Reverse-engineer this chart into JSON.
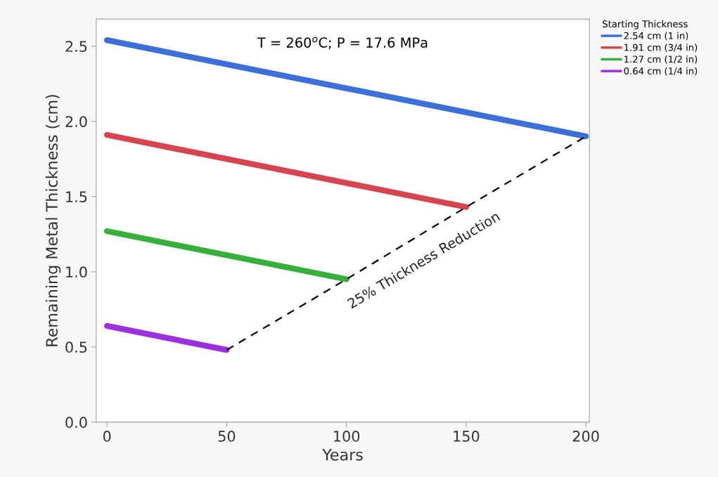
{
  "chart_data": {
    "type": "line",
    "xlabel": "Years",
    "ylabel": "Remaining Metal Thickness (cm)",
    "legend_title": "Starting Thickness",
    "legend": "right",
    "grid": false,
    "marker": "none",
    "line_style": "solid",
    "xlim": [
      -4.5,
      201.5
    ],
    "xticks": [
      0,
      50,
      100,
      150,
      200
    ],
    "ylim": [
      0,
      2.68
    ],
    "yticks": [
      {
        "value": 0,
        "label": "0.0"
      },
      0.5,
      {
        "value": 1,
        "label": "1.0"
      },
      1.5,
      {
        "value": 2,
        "label": "2.0"
      },
      2.5
    ],
    "series": [
      {
        "name": "2.54 cm (1 in)",
        "color": "#3d6fd9",
        "x": [
          0,
          200
        ],
        "values": [
          2.54,
          1.9
        ]
      },
      {
        "name": "1.91 cm (3/4 in)",
        "color": "#d6444f",
        "x": [
          0,
          150
        ],
        "values": [
          1.91,
          1.43
        ]
      },
      {
        "name": "1.27 cm (1/2 in)",
        "color": "#36b03b",
        "x": [
          0,
          100
        ],
        "values": [
          1.27,
          0.95
        ]
      },
      {
        "name": "0.64 cm (1/4 in)",
        "color": "#9b30e0",
        "x": [
          0,
          50
        ],
        "values": [
          0.64,
          0.48
        ]
      },
      {
        "color": "#000000",
        "line_style": "dashed",
        "x": [
          50,
          100,
          150,
          200
        ],
        "values": [
          0.48,
          0.95,
          1.43,
          1.9
        ]
      }
    ],
    "annotations": [
      "T = 260$^{o}$C; P = 17.6 MPa",
      "25% Thickness Reduction"
    ]
  }
}
